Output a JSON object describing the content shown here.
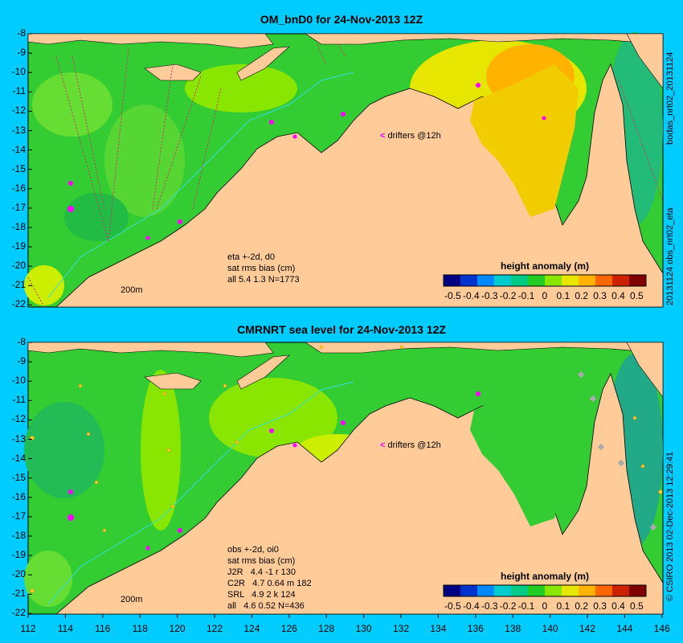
{
  "panels": [
    {
      "title": "OM_bnD0 for 24-Nov-2013 12Z",
      "annotation": "eta +-2d, d0\nsat rms bias (cm)\nall 5.4 1.3 N=1773",
      "drifters": "drifters @12h",
      "scale": "200m",
      "colorbar_title": "height anomaly (m)"
    },
    {
      "title": "CMRNRT sea level  for 24-Nov-2013 12Z",
      "annotation": "obs +-2d, oi0\nsat rms bias (cm)\nJ2R   4.4 -1 r 130\nC2R   4.7 0.64 m 182\nSRL   4.9 2 k 124\nall   4.6 0.52 N=436",
      "drifters": "drifters @12h",
      "scale": "200m",
      "colorbar_title": "height anomaly (m)"
    }
  ],
  "side_texts": {
    "top_right_1": "bodas_nrt02_20131124",
    "top_right_2": "20131124 obs_nrt02_eta",
    "bottom_right": "© CSIRO 2013  02-Dec-2013 12:29:41"
  },
  "axes": {
    "lat_ticks": [
      "-8",
      "-9",
      "-10",
      "-11",
      "-12",
      "-13",
      "-14",
      "-15",
      "-16",
      "-17",
      "-18",
      "-19",
      "-20",
      "-21",
      "-22"
    ],
    "lon_ticks": [
      "112",
      "114",
      "116",
      "118",
      "120",
      "122",
      "124",
      "126",
      "128",
      "130",
      "132",
      "134",
      "136",
      "138",
      "140",
      "142",
      "144",
      "146"
    ]
  },
  "colorbar": {
    "labels": [
      "-0.5",
      "-0.4",
      "-0.3",
      "-0.2",
      "-0.1",
      "0",
      "0.1",
      "0.2",
      "0.3",
      "0.4",
      "0.5"
    ],
    "colors": [
      "#000080",
      "#0033cc",
      "#0088ff",
      "#00cccc",
      "#00cc88",
      "#22cc22",
      "#88e600",
      "#e6e600",
      "#ffb300",
      "#ff6600",
      "#cc2200",
      "#800000"
    ]
  },
  "colors": {
    "background": "#00ccff",
    "land": "#ffcc99",
    "ocean_base": "#33cc33",
    "drifter": "#ff00ff"
  }
}
